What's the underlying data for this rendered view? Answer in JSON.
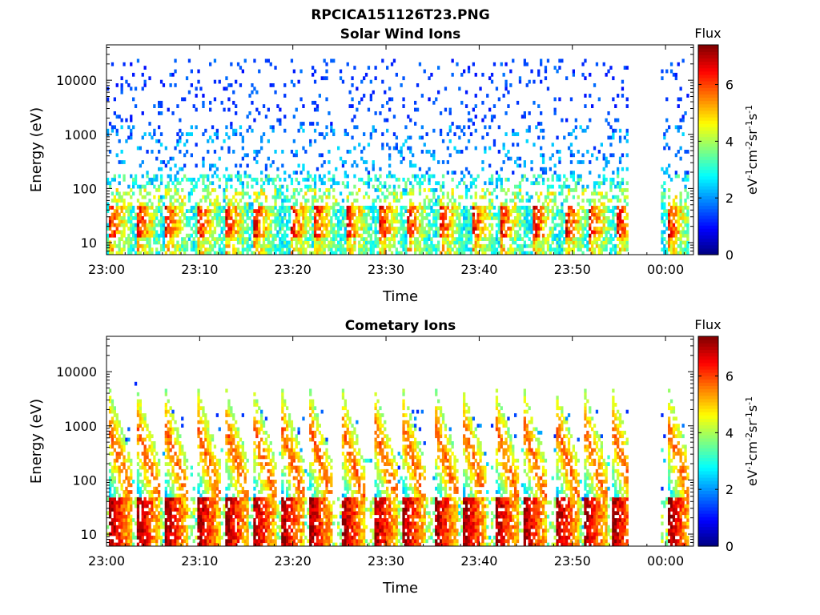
{
  "figure": {
    "title": "RPCICA151126T23.PNG"
  },
  "chart_data": [
    {
      "type": "heatmap",
      "title": "Solar Wind Ions",
      "xlabel": "Time",
      "ylabel": "Energy (eV)",
      "y_scale": "log",
      "x_tick_labels": [
        "23:00",
        "23:10",
        "23:20",
        "23:30",
        "23:40",
        "23:50",
        "00:00"
      ],
      "y_tick_labels": [
        "10",
        "100",
        "1000",
        "10000"
      ],
      "xlim_minutes": [
        0,
        63
      ],
      "ylim": [
        6,
        45000
      ],
      "colorbar": {
        "title": "Flux",
        "label": "eV^-1 cm^-2 sr^-1 s^-1",
        "ticks": [
          "0",
          "2",
          "4",
          "6"
        ],
        "range": [
          0,
          7.4
        ]
      },
      "data_gap_minutes": [
        56,
        59.5
      ],
      "low_energy_peak_flux": 6.5,
      "high_energy_background_flux": 1.2,
      "pulses_start_minutes": [
        0.5,
        3.5,
        6.5,
        10,
        13,
        16,
        20,
        22.5,
        26,
        29.5,
        32.5,
        36,
        39.5,
        42.5,
        46,
        49.5,
        52,
        55,
        60.5
      ]
    },
    {
      "type": "heatmap",
      "title": "Cometary Ions",
      "xlabel": "Time",
      "ylabel": "Energy (eV)",
      "y_scale": "log",
      "x_tick_labels": [
        "23:00",
        "23:10",
        "23:20",
        "23:30",
        "23:40",
        "23:50",
        "00:00"
      ],
      "y_tick_labels": [
        "10",
        "100",
        "1000",
        "10000"
      ],
      "xlim_minutes": [
        0,
        63
      ],
      "ylim": [
        6,
        45000
      ],
      "colorbar": {
        "title": "Flux",
        "label": "eV^-1 cm^-2 sr^-1 s^-1",
        "ticks": [
          "0",
          "2",
          "4",
          "6"
        ],
        "range": [
          0,
          7.4
        ]
      },
      "data_gap_minutes": [
        56,
        59.5
      ],
      "low_energy_peak_flux": 7.2,
      "pulses_start_minutes": [
        0.5,
        3.5,
        6.5,
        10,
        13,
        16,
        19,
        22,
        25.5,
        29,
        32,
        35.5,
        38.5,
        42,
        45,
        48.5,
        51.5,
        54.5,
        60.5
      ]
    }
  ]
}
